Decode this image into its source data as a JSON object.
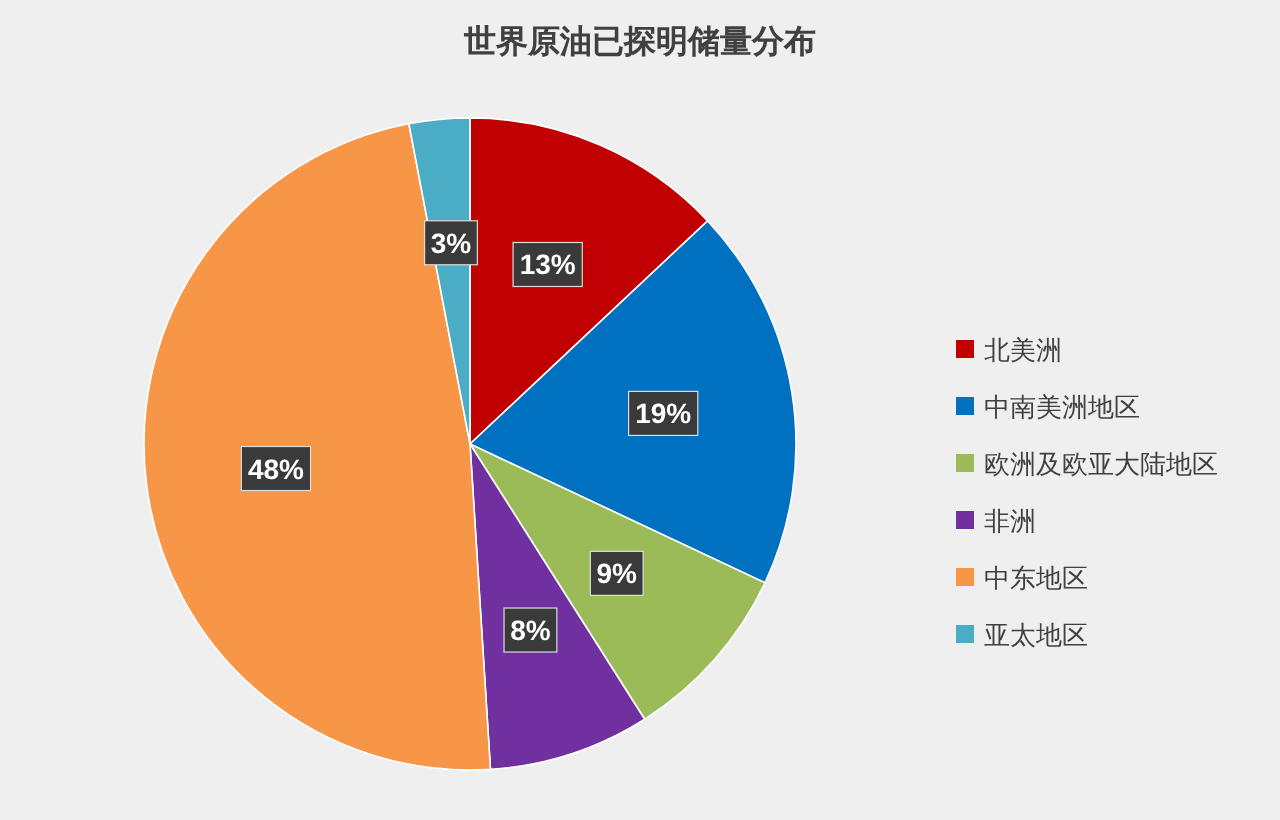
{
  "chart_data": {
    "type": "pie",
    "title": "世界原油已探明储量分布",
    "categories": [
      "北美洲",
      "中南美洲地区",
      "欧洲及欧亚大陆地区",
      "非洲",
      "中东地区",
      "亚太地区"
    ],
    "values": [
      13,
      19,
      9,
      8,
      48,
      3
    ],
    "colors": [
      "#c00000",
      "#0070c0",
      "#9bbb59",
      "#7030a0",
      "#f79646",
      "#4bacc6"
    ],
    "value_labels": [
      "13%",
      "19%",
      "9%",
      "8%",
      "48%",
      "3%"
    ],
    "legend": "right"
  }
}
